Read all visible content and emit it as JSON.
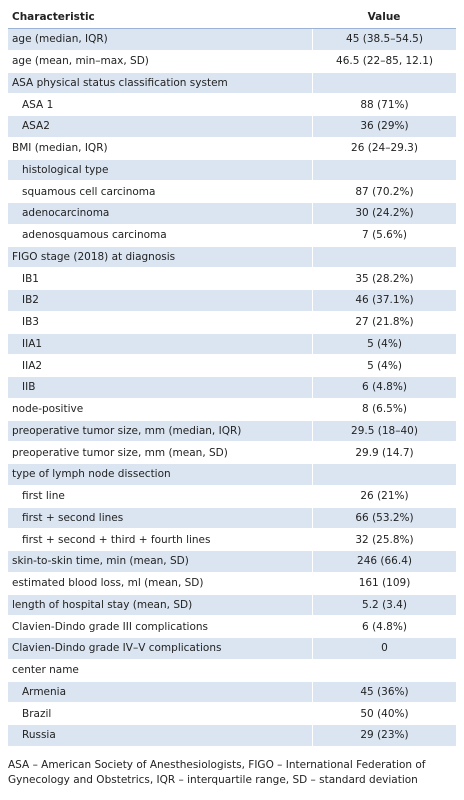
{
  "table": {
    "header": [
      "Characteristic",
      "Value"
    ],
    "rows": [
      {
        "label": "age (median, IQR)",
        "value": "45 (38.5–54.5)"
      },
      {
        "label": "age (mean, min–max, SD)",
        "value": "46.5 (22–85, 12.1)"
      },
      {
        "label": "ASA physical status classification system"
      },
      {
        "label": "ASA 1",
        "value": "88 (71%)",
        "indent": true
      },
      {
        "label": "ASA2",
        "value": "36 (29%)",
        "indent": true
      },
      {
        "label": "BMI (median, IQR)",
        "value": "26 (24–29.3)"
      },
      {
        "label": "histological type",
        "indent": true
      },
      {
        "label": "squamous cell carcinoma",
        "value": "87 (70.2%)",
        "indent": true
      },
      {
        "label": "adenocarcinoma",
        "value": "30 (24.2%)",
        "indent": true
      },
      {
        "label": "adenosquamous carcinoma",
        "value": "7 (5.6%)",
        "indent": true
      },
      {
        "label": "FIGO stage (2018) at diagnosis"
      },
      {
        "label": "IB1",
        "value": "35 (28.2%)",
        "indent": true
      },
      {
        "label": "IB2",
        "value": "46 (37.1%)",
        "indent": true
      },
      {
        "label": "IB3",
        "value": "27 (21.8%)",
        "indent": true
      },
      {
        "label": "IIA1",
        "value": "5 (4%)",
        "indent": true
      },
      {
        "label": "IIA2",
        "value": "5 (4%)",
        "indent": true
      },
      {
        "label": "IIB",
        "value": "6 (4.8%)",
        "indent": true
      },
      {
        "label": "node-positive",
        "value": "8 (6.5%)"
      },
      {
        "label": "preoperative tumor size, mm (median, IQR)",
        "value": "29.5 (18–40)"
      },
      {
        "label": "preoperative tumor size, mm (mean, SD)",
        "value": "29.9 (14.7)"
      },
      {
        "label": "type of lymph node dissection"
      },
      {
        "label": "first line",
        "value": "26 (21%)",
        "indent": true
      },
      {
        "label": "first + second lines",
        "value": "66 (53.2%)",
        "indent": true
      },
      {
        "label": "first + second + third + fourth lines",
        "value": "32 (25.8%)",
        "indent": true
      },
      {
        "label": "skin-to-skin time, min (mean, SD)",
        "value": "246 (66.4)"
      },
      {
        "label": "estimated blood loss, ml (mean, SD)",
        "value": "161 (109)"
      },
      {
        "label": "length of hospital stay (mean, SD)",
        "value": "5.2 (3.4)"
      },
      {
        "label": "Clavien-Dindo grade III complications",
        "value": "6 (4.8%)"
      },
      {
        "label": "Clavien-Dindo grade IV–V complications",
        "value": "0"
      },
      {
        "label": "center name"
      },
      {
        "label": "Armenia",
        "value": "45 (36%)",
        "indent": true
      },
      {
        "label": "Brazil",
        "value": "50 (40%)",
        "indent": true
      },
      {
        "label": "Russia",
        "value": "29 (23%)",
        "indent": true
      }
    ],
    "footnote": "ASA – American Society of Anesthesiologists, FIGO – International Federation of Gynecology and Obstetrics, IQR – interquartile range, SD – standard deviation"
  }
}
